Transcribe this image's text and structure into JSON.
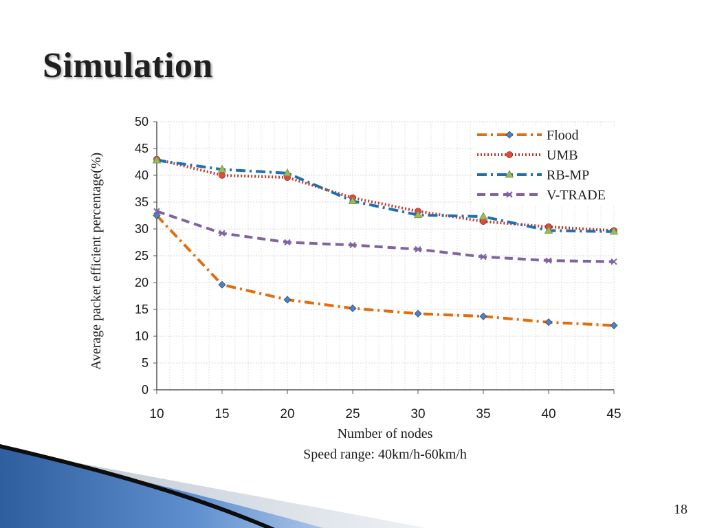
{
  "slide": {
    "title": "Simulation",
    "page_number": "18"
  },
  "colors": {
    "flood": "#E46C0A",
    "umb": "#C0392B",
    "rbmp": "#1F6FB5",
    "vtrade": "#8064A2",
    "umb_marker": "#E04C3C",
    "rbmp_marker": "#9BBB59",
    "flood_marker": "#4F81BD",
    "decor_blue": "#2E5E9E"
  },
  "chart_data": {
    "type": "line",
    "xlabel": "Number of nodes",
    "ylabel": "Average packet efficient percentage(%)",
    "note": "Speed range: 40km/h-60km/h",
    "x": [
      10,
      15,
      20,
      25,
      30,
      35,
      40,
      45
    ],
    "xlim": [
      10,
      45
    ],
    "ylim": [
      0,
      50
    ],
    "yticks": [
      0,
      5,
      10,
      15,
      20,
      25,
      30,
      35,
      40,
      45,
      50
    ],
    "xticks": [
      10,
      15,
      20,
      25,
      30,
      35,
      40,
      45
    ],
    "grid": true,
    "legend_position": "top-right",
    "series": [
      {
        "name": "Flood",
        "key": "flood",
        "style": "dash-dot",
        "marker": "diamond",
        "values": [
          32.5,
          19.6,
          16.8,
          15.2,
          14.2,
          13.7,
          12.6,
          12.0
        ]
      },
      {
        "name": "UMB",
        "key": "umb",
        "style": "dotted",
        "marker": "circle",
        "values": [
          43.0,
          40.0,
          39.6,
          35.8,
          33.3,
          31.4,
          30.4,
          29.7
        ]
      },
      {
        "name": "RB-MP",
        "key": "rbmp",
        "style": "dash-dot",
        "marker": "triangle",
        "values": [
          42.8,
          41.1,
          40.4,
          35.2,
          32.6,
          32.3,
          29.7,
          29.5
        ]
      },
      {
        "name": "V-TRADE",
        "key": "vtrade",
        "style": "dashed",
        "marker": "x",
        "values": [
          33.3,
          29.2,
          27.5,
          27.0,
          26.2,
          24.8,
          24.1,
          23.9
        ]
      }
    ]
  }
}
